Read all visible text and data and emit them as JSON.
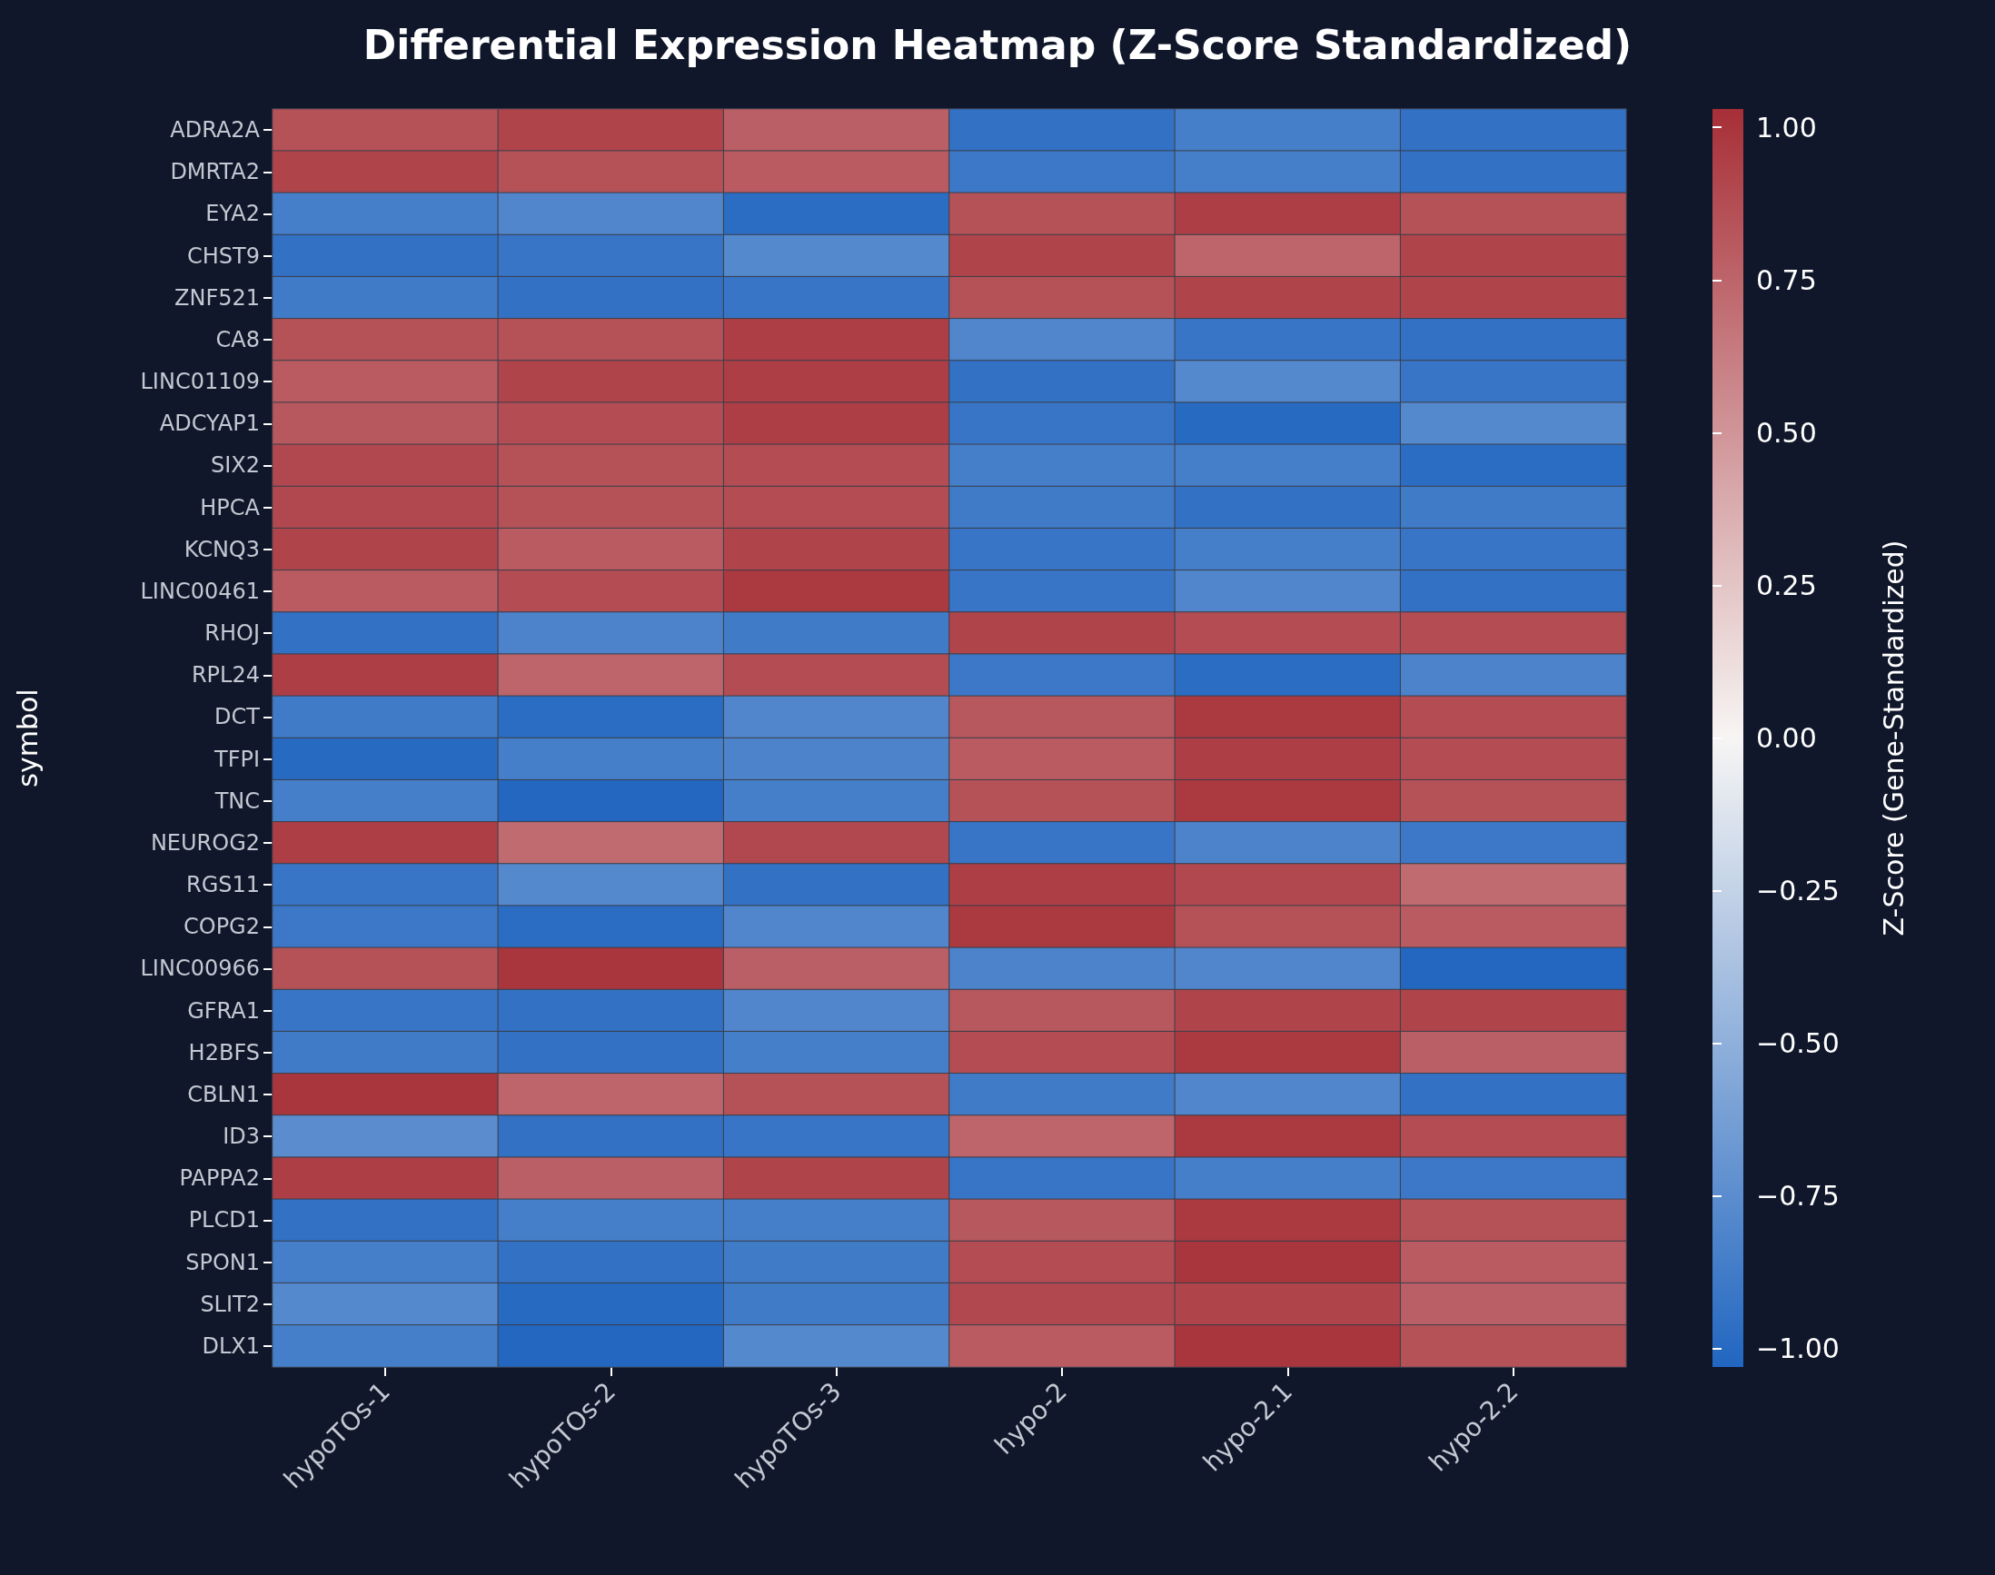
{
  "chart_data": {
    "type": "heatmap",
    "title": "Differential Expression Heatmap (Z-Score Standardized)",
    "ylabel": "symbol",
    "clabel": "Z-Score (Gene-Standardized)",
    "categories": [
      "hypoTOs-1",
      "hypoTOs-2",
      "hypoTOs-3",
      "hypo-2",
      "hypo-2.1",
      "hypo-2.2"
    ],
    "y_categories": [
      "ADRA2A",
      "DMRTA2",
      "EYA2",
      "CHST9",
      "ZNF521",
      "CA8",
      "LINC01109",
      "ADCYAP1",
      "SIX2",
      "HPCA",
      "KCNQ3",
      "LINC00461",
      "RHOJ",
      "RPL24",
      "DCT",
      "TFPI",
      "TNC",
      "NEUROG2",
      "RGS11",
      "COPG2",
      "LINC00966",
      "GFRA1",
      "H2BFS",
      "CBLN1",
      "ID3",
      "PAPPA2",
      "PLCD1",
      "SPON1",
      "SLIT2",
      "DLX1"
    ],
    "cells": [
      [
        0.85,
        0.92,
        0.78,
        -0.95,
        -0.85,
        -0.95
      ],
      [
        0.92,
        0.85,
        0.8,
        -0.9,
        -0.85,
        -0.95
      ],
      [
        -0.85,
        -0.8,
        -0.98,
        0.85,
        0.95,
        0.85
      ],
      [
        -0.95,
        -0.92,
        -0.78,
        0.92,
        0.75,
        0.92
      ],
      [
        -0.88,
        -0.95,
        -0.92,
        0.85,
        0.92,
        0.92
      ],
      [
        0.85,
        0.85,
        0.95,
        -0.8,
        -0.92,
        -0.95
      ],
      [
        0.8,
        0.92,
        0.95,
        -0.95,
        -0.78,
        -0.92
      ],
      [
        0.82,
        0.88,
        0.95,
        -0.92,
        -1.0,
        -0.78
      ],
      [
        0.9,
        0.85,
        0.88,
        -0.85,
        -0.85,
        -0.98
      ],
      [
        0.9,
        0.85,
        0.88,
        -0.88,
        -0.95,
        -0.88
      ],
      [
        0.92,
        0.8,
        0.92,
        -0.92,
        -0.85,
        -0.92
      ],
      [
        0.8,
        0.88,
        0.98,
        -0.92,
        -0.8,
        -0.95
      ],
      [
        -0.95,
        -0.82,
        -0.88,
        0.92,
        0.88,
        0.88
      ],
      [
        0.95,
        0.75,
        0.88,
        -0.9,
        -0.98,
        -0.82
      ],
      [
        -0.88,
        -0.98,
        -0.8,
        0.82,
        0.98,
        0.88
      ],
      [
        -1.0,
        -0.85,
        -0.82,
        0.8,
        0.95,
        0.88
      ],
      [
        -0.85,
        -1.02,
        -0.85,
        0.85,
        0.98,
        0.85
      ],
      [
        0.95,
        0.72,
        0.9,
        -0.92,
        -0.82,
        -0.9
      ],
      [
        -0.92,
        -0.78,
        -0.95,
        0.95,
        0.9,
        0.72
      ],
      [
        -0.9,
        -0.98,
        -0.8,
        0.98,
        0.85,
        0.8
      ],
      [
        0.85,
        1.0,
        0.78,
        -0.82,
        -0.8,
        -1.02
      ],
      [
        -0.92,
        -0.95,
        -0.8,
        0.82,
        0.92,
        0.92
      ],
      [
        -0.88,
        -0.95,
        -0.85,
        0.88,
        0.98,
        0.78
      ],
      [
        1.0,
        0.75,
        0.85,
        -0.88,
        -0.8,
        -0.95
      ],
      [
        -0.75,
        -0.95,
        -0.92,
        0.75,
        0.98,
        0.88
      ],
      [
        0.95,
        0.78,
        0.92,
        -0.92,
        -0.85,
        -0.9
      ],
      [
        -0.95,
        -0.85,
        -0.85,
        0.82,
        0.98,
        0.85
      ],
      [
        -0.85,
        -0.95,
        -0.88,
        0.88,
        1.0,
        0.8
      ],
      [
        -0.78,
        -1.0,
        -0.88,
        0.9,
        0.92,
        0.78
      ],
      [
        -0.85,
        -1.02,
        -0.78,
        0.8,
        1.0,
        0.85
      ]
    ],
    "clim": [
      -1.03,
      1.03
    ],
    "cticks": [
      {
        "value": -1,
        "label": "−1.00"
      },
      -0.75,
      {
        "value": -0.5,
        "label": "−0.50"
      },
      -0.25,
      {
        "value": 0,
        "label": "0.00"
      },
      0.25,
      {
        "value": 0.5,
        "label": "0.50"
      },
      0.75,
      {
        "value": 1,
        "label": "1.00"
      }
    ]
  }
}
